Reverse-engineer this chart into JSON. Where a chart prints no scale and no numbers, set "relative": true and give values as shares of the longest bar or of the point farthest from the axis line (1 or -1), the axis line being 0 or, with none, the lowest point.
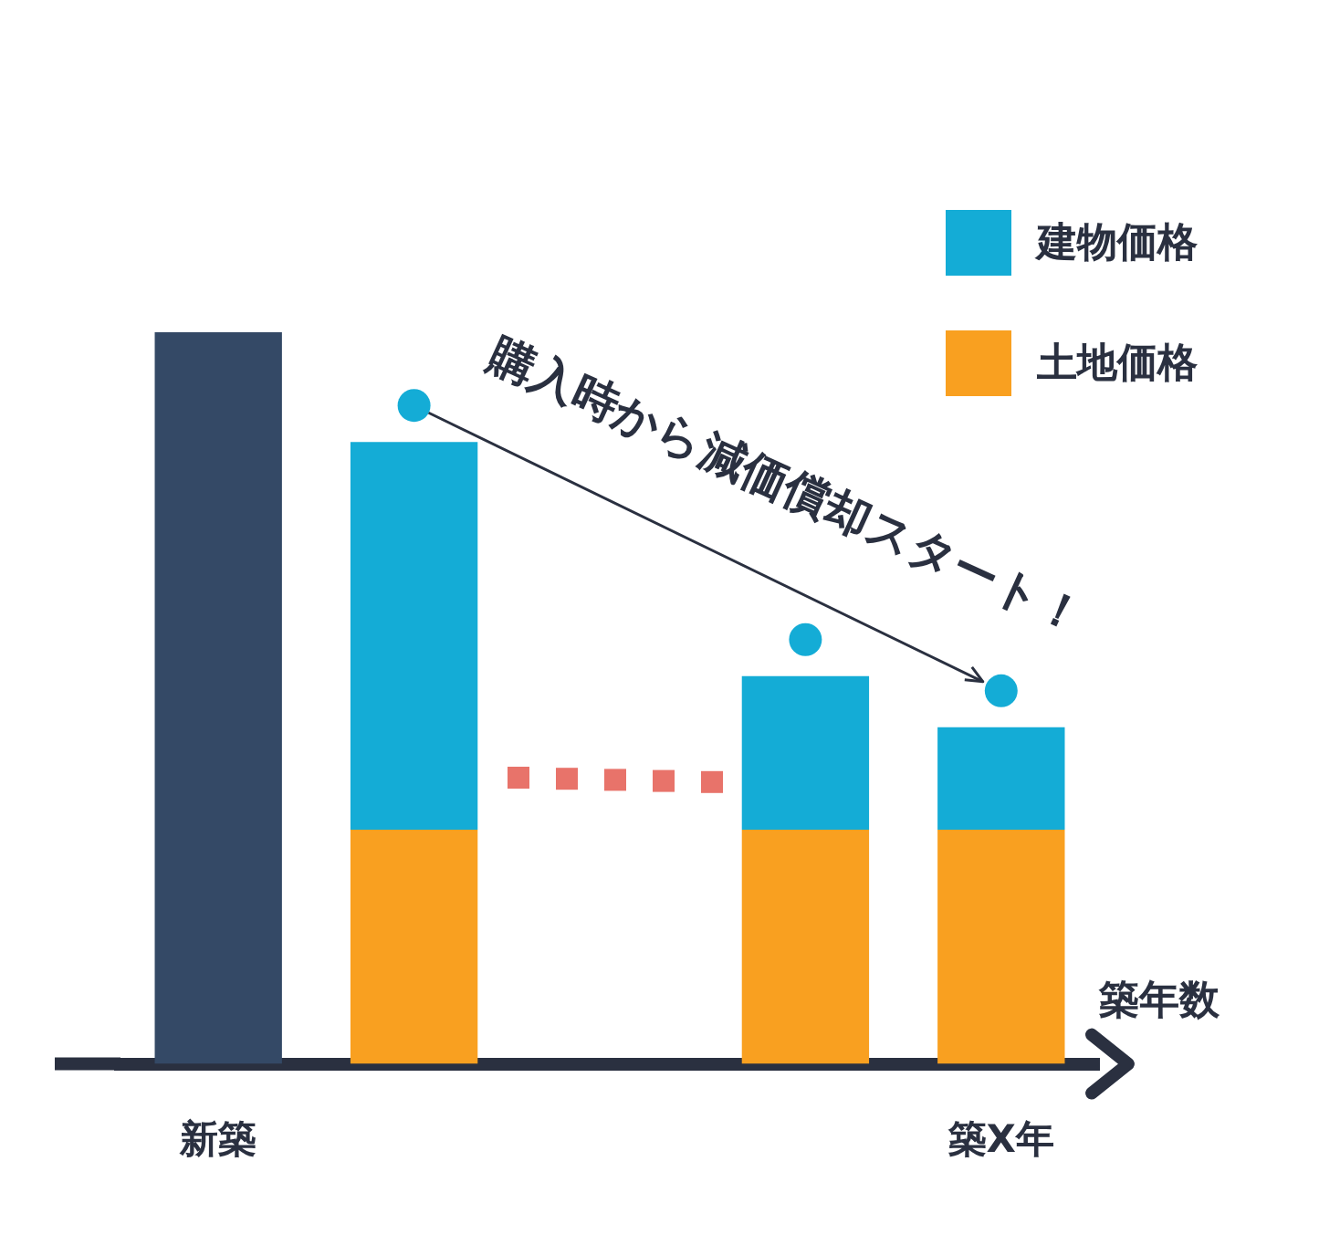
{
  "chart_data": {
    "type": "bar",
    "relative": true,
    "stacked": true,
    "legend": "top right",
    "xlabel": "築年数",
    "categories": [
      "新築",
      null,
      null,
      null,
      "築X年"
    ],
    "series": [
      {
        "color": "#344966",
        "values": [
          1,
          null,
          null,
          null,
          null
        ]
      },
      {
        "name": "土地価格",
        "color": "#f9a020",
        "values": [
          null,
          0.32,
          null,
          0.32,
          0.32
        ]
      },
      {
        "name": "建物価格",
        "color": "#14acd6",
        "values": [
          null,
          0.53,
          null,
          0.21,
          0.14
        ]
      }
    ],
    "annotations": [
      "購入時から減価償却スタート！"
    ]
  }
}
